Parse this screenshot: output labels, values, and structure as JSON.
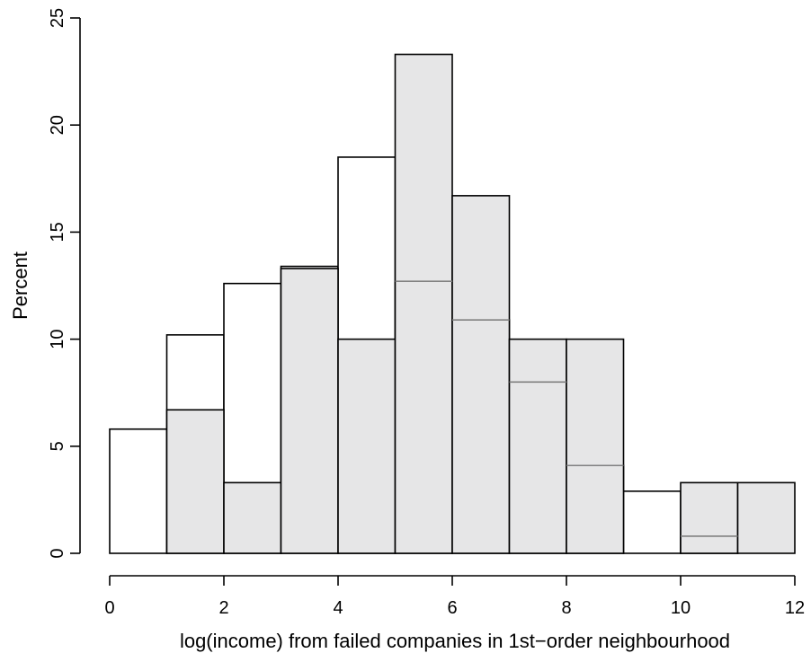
{
  "colors": {
    "series1_fill": "#ffffff",
    "series2_fill": "#e6e6e7",
    "series2_internal_line": "#808080",
    "stroke": "#000000"
  },
  "chart_data": {
    "type": "bar",
    "title": "",
    "xlabel": "log(income) from failed companies in 1st−order neighbourhood",
    "ylabel": "Percent",
    "xlim": [
      0,
      12
    ],
    "ylim": [
      0,
      25
    ],
    "xticks": [
      0,
      2,
      4,
      6,
      8,
      10,
      12
    ],
    "yticks": [
      0,
      5,
      10,
      15,
      20,
      25
    ],
    "grid": false,
    "legend": "none",
    "bin_edges": [
      0,
      1,
      2,
      3,
      4,
      5,
      6,
      7,
      8,
      9,
      10,
      11,
      12
    ],
    "series": [
      {
        "fill": "white",
        "values": [
          5.8,
          10.2,
          12.6,
          13.4,
          18.5,
          12.7,
          10.9,
          8.0,
          4.1,
          2.9,
          0.8,
          0
        ]
      },
      {
        "fill": "lightgray",
        "values": [
          0,
          6.7,
          3.3,
          13.3,
          10.0,
          23.3,
          16.7,
          10.0,
          10.0,
          0,
          3.3,
          3.3
        ]
      }
    ]
  }
}
